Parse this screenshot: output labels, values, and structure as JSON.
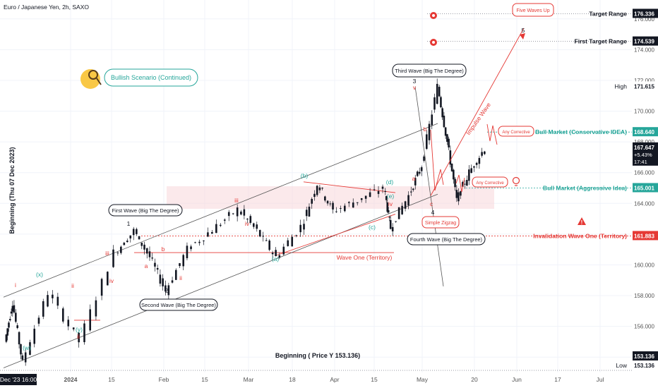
{
  "header": {
    "title": "Euro / Japanese Yen, 2h, SAXO"
  },
  "colors": {
    "up": "#26a69a",
    "down": "#ef5350",
    "red": "#e53935",
    "teal": "#26a69a",
    "black": "#131722",
    "grid": "#f0f3fa"
  },
  "chart_data": {
    "type": "line",
    "title": "Euro / Japanese Yen, 2h, SAXO",
    "ylabel": "Beginning (Thu 07 Dec 2023)",
    "ylim": [
      153.0,
      177.0
    ],
    "x_ticks": [
      "Dec '23 16:00",
      "2024",
      "15",
      "Feb",
      "15",
      "Mar",
      "18",
      "Apr",
      "15",
      "May",
      "20",
      "Jun",
      "17",
      "Jul"
    ],
    "y_ticks": [
      "176.000",
      "174.000",
      "172.000",
      "170.000",
      "168.000",
      "166.000",
      "164.000",
      "162.000",
      "160.000",
      "158.000",
      "156.000",
      "154.000"
    ],
    "price_labels": [
      {
        "name": "Target Range",
        "value": "176.336",
        "style": "black"
      },
      {
        "name": "First Target Range",
        "value": "174.539",
        "style": "black"
      },
      {
        "name": "High",
        "value": "171.615",
        "style": "plain"
      },
      {
        "name": "Bull Market (Conservative IDEA)",
        "value": "168.640",
        "style": "teal"
      },
      {
        "name": "Current",
        "value": "167.647",
        "extra": [
          "+5.43%",
          "17:41"
        ],
        "style": "black"
      },
      {
        "name": "Bull Market (Aggressive Idea)",
        "value": "165.001",
        "style": "teal"
      },
      {
        "name": "Invalidation Wave One (Territory)",
        "value": "161.883",
        "style": "red"
      },
      {
        "name": "Beginning",
        "value": "153.136",
        "style": "black"
      },
      {
        "name": "Low",
        "value": "153.136",
        "style": "plain"
      }
    ],
    "wave_points": [
      {
        "x": 0.0,
        "y": 155.0
      },
      {
        "x": 0.012,
        "y": 157.6
      },
      {
        "x": 0.028,
        "y": 153.6
      },
      {
        "x": 0.07,
        "y": 158.2
      },
      {
        "x": 0.12,
        "y": 155.0
      },
      {
        "x": 0.175,
        "y": 160.8
      },
      {
        "x": 0.205,
        "y": 162.2
      },
      {
        "x": 0.23,
        "y": 160.5
      },
      {
        "x": 0.255,
        "y": 158.3
      },
      {
        "x": 0.29,
        "y": 161.0
      },
      {
        "x": 0.33,
        "y": 162.3
      },
      {
        "x": 0.37,
        "y": 163.6
      },
      {
        "x": 0.4,
        "y": 162.2
      },
      {
        "x": 0.43,
        "y": 160.5
      },
      {
        "x": 0.47,
        "y": 162.5
      },
      {
        "x": 0.495,
        "y": 165.3
      },
      {
        "x": 0.52,
        "y": 163.5
      },
      {
        "x": 0.56,
        "y": 164.2
      },
      {
        "x": 0.6,
        "y": 165.0
      },
      {
        "x": 0.61,
        "y": 162.4
      },
      {
        "x": 0.64,
        "y": 164.5
      },
      {
        "x": 0.66,
        "y": 166.5
      },
      {
        "x": 0.685,
        "y": 171.6
      },
      {
        "x": 0.7,
        "y": 168.0
      },
      {
        "x": 0.715,
        "y": 164.2
      },
      {
        "x": 0.735,
        "y": 166.0
      },
      {
        "x": 0.76,
        "y": 167.6
      }
    ]
  },
  "legend_badges": {
    "bullish": "Bullish Scenario (Continued)",
    "five_waves": "Five Waves Up",
    "any_corrective_1": "Any Corrective",
    "any_corrective_2": "Any Corrective",
    "simple_zigzag": "Simple Zigzag"
  },
  "callouts": {
    "first_wave": "First Wave (Big The Degree)",
    "second_wave": "Second Wave (Big The Degree)",
    "third_wave": "Third Wave (Big The Degree)",
    "fourth_wave": "Fourth Wave (Big The Degree)"
  },
  "text_labels": {
    "impulse_wave": "Impulse Wave",
    "wave_one_territory": "Wave One (Territory)",
    "beginning_price": "Beginning ( Price Y 153.136)"
  },
  "wave_marks": {
    "w": "(w)",
    "x": "(x)",
    "y": "(y)",
    "a_b": "(a)",
    "b_b": "(b)",
    "c_b": "(c)",
    "d_b": "(d)",
    "e_b": "(e)",
    "i": "i",
    "ii": "ii",
    "iii": "iii",
    "iv": "iv",
    "v": "v",
    "one": "1",
    "two": "2",
    "three": "3",
    "four": "4",
    "five": "5",
    "a": "a",
    "b": "b",
    "c": "c"
  }
}
